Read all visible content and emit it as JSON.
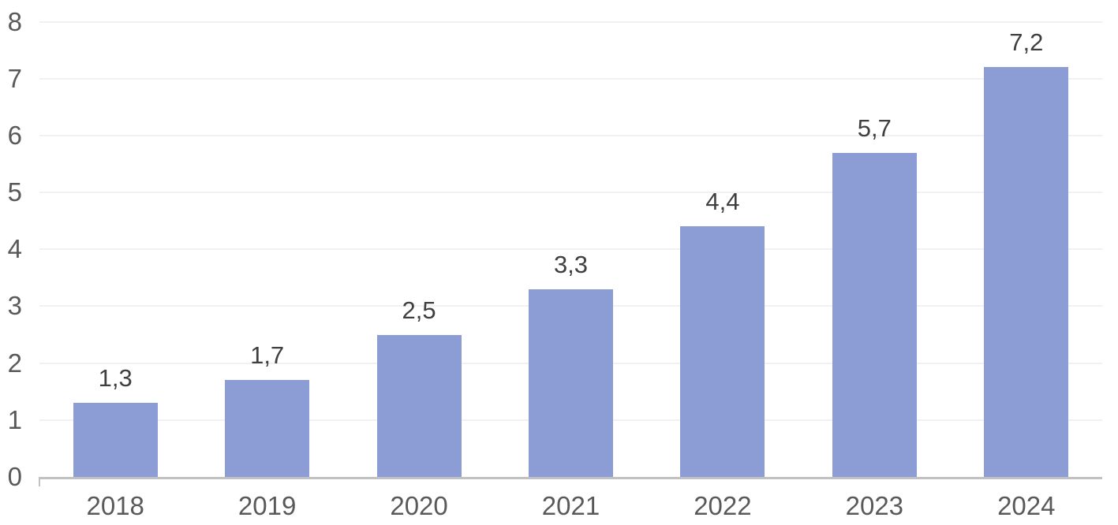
{
  "chart_data": {
    "type": "bar",
    "title": "",
    "xlabel": "",
    "ylabel": "",
    "categories": [
      "2018",
      "2019",
      "2020",
      "2021",
      "2022",
      "2023",
      "2024"
    ],
    "values": [
      1.3,
      1.7,
      2.5,
      3.3,
      4.4,
      5.7,
      7.2
    ],
    "value_labels": [
      "1,3",
      "1,7",
      "2,5",
      "3,3",
      "4,4",
      "5,7",
      "7,2"
    ],
    "y_ticks": [
      "0",
      "1",
      "2",
      "3",
      "4",
      "5",
      "6",
      "7",
      "8"
    ],
    "y_tick_values": [
      0,
      1,
      2,
      3,
      4,
      5,
      6,
      7,
      8
    ],
    "ylim": [
      0,
      8
    ],
    "grid": "horizontal",
    "legend_position": "none",
    "colors": {
      "bar": "#8C9DD6",
      "axis_line": "#C1C1C1",
      "gridline": "#F1F1F1",
      "tick_label": "#595959",
      "category_label": "#595959",
      "value_label": "#3F3F3F",
      "background": "#FFFFFF"
    }
  }
}
